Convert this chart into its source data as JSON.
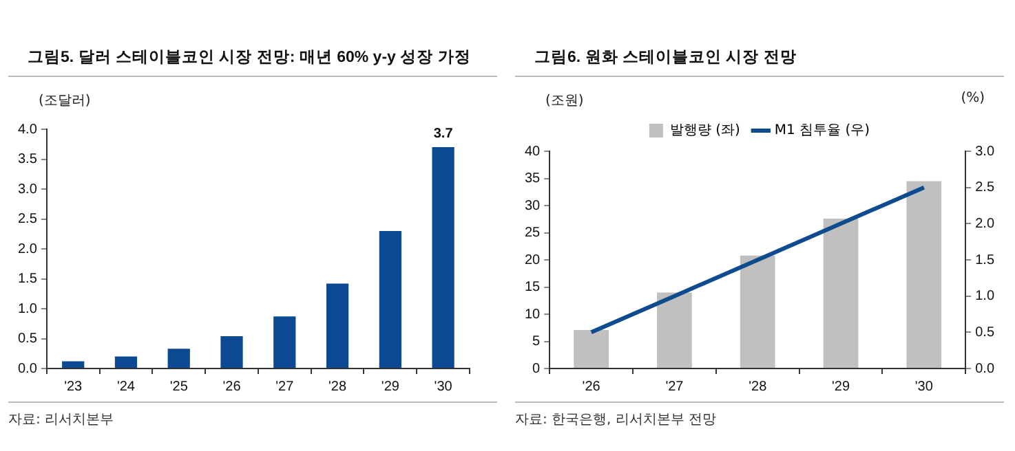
{
  "chart_data": [
    {
      "type": "bar",
      "title": "그림5. 달러 스테이블코인 시장 전망: 매년 60% y-y 성장 가정",
      "ylabel": "(조달러)",
      "annotations": [
        "자료: 리서치본부"
      ],
      "categories": [
        "'23",
        "'24",
        "'25",
        "'26",
        "'27",
        "'28",
        "'29",
        "'30"
      ],
      "series": [
        {
          "color": "#0b4a93",
          "values": [
            0.12,
            0.2,
            0.33,
            0.54,
            0.87,
            1.42,
            2.3,
            3.7
          ],
          "value_labels": [
            null,
            null,
            null,
            null,
            null,
            null,
            null,
            "3.7"
          ]
        }
      ],
      "ylim": [
        0,
        4
      ],
      "yticks": [
        {
          "value": 0,
          "label": "0.0"
        },
        {
          "value": 0.5,
          "label": "0.5"
        },
        {
          "value": 1,
          "label": "1.0"
        },
        {
          "value": 1.5,
          "label": "1.5"
        },
        {
          "value": 2,
          "label": "2.0"
        },
        {
          "value": 2.5,
          "label": "2.5"
        },
        {
          "value": 3,
          "label": "3.0"
        },
        {
          "value": 3.5,
          "label": "3.5"
        },
        {
          "value": 4,
          "label": "4.0"
        }
      ],
      "grid": false,
      "legend": false
    },
    {
      "type": "bar",
      "title": "그림6. 원화 스테이블코인 시장 전망",
      "ylabel": "(조원)",
      "y2label": "(%)",
      "annotations": [
        "자료: 한국은행, 리서치본부 전망"
      ],
      "categories": [
        "'26",
        "'27",
        "'28",
        "'29",
        "'30"
      ],
      "series": [
        {
          "name": "발행량 (좌)",
          "color": "#c0c0c0",
          "values": [
            7.1,
            14,
            20.8,
            27.6,
            34.5
          ]
        },
        {
          "name": "M1 침투율 (우)",
          "type": "line",
          "axis": "y2",
          "color": "#0f4c8f",
          "values": [
            0.5,
            1.0,
            1.5,
            2.0,
            2.5
          ]
        }
      ],
      "ylim": [
        0,
        40
      ],
      "yticks": [
        0,
        5,
        10,
        15,
        20,
        25,
        30,
        35,
        40
      ],
      "y2lim": [
        0,
        3
      ],
      "y2ticks": [
        {
          "value": 0,
          "label": "0.0"
        },
        {
          "value": 0.5,
          "label": "0.5"
        },
        {
          "value": 1,
          "label": "1.0"
        },
        {
          "value": 1.5,
          "label": "1.5"
        },
        {
          "value": 2,
          "label": "2.0"
        },
        {
          "value": 2.5,
          "label": "2.5"
        },
        {
          "value": 3,
          "label": "3.0"
        }
      ],
      "grid": false,
      "legend": "top",
      "marker": "none"
    }
  ]
}
